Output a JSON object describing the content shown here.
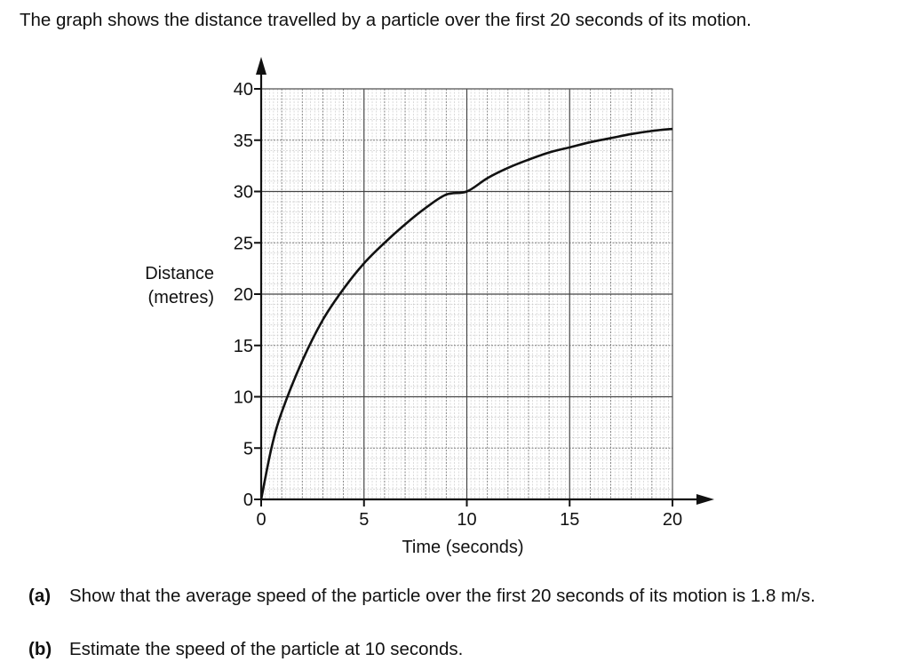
{
  "intro_text": "The graph shows the distance travelled by a particle over the first 20 seconds of its motion.",
  "chart_data": {
    "type": "line",
    "xlabel": "Time (seconds)",
    "ylabel_lines": [
      "Distance",
      "(metres)"
    ],
    "xlim": [
      0,
      20
    ],
    "ylim": [
      0,
      40
    ],
    "x_ticks": [
      0,
      5,
      10,
      15,
      20
    ],
    "y_ticks": [
      0,
      5,
      10,
      15,
      20,
      25,
      30,
      35,
      40
    ],
    "grid": true,
    "grid_minor_step": 1,
    "series": [
      {
        "x": [
          0,
          0.5,
          1,
          2,
          3,
          4,
          5,
          6,
          7,
          8,
          9,
          10,
          11,
          12,
          13,
          14,
          15,
          16,
          17,
          18,
          19,
          20
        ],
        "y": [
          0,
          5,
          8.5,
          13.5,
          17.5,
          20.5,
          23,
          25,
          26.8,
          28.4,
          29.7,
          30,
          31.3,
          32.3,
          33.1,
          33.8,
          34.3,
          34.8,
          35.2,
          35.6,
          35.9,
          36.1
        ]
      }
    ]
  },
  "questions": [
    {
      "label": "(a)",
      "text": "Show that the average speed of the particle over the first 20 seconds of its motion is 1.8 m/s."
    },
    {
      "label": "(b)",
      "text": "Estimate the speed of the particle at 10 seconds."
    }
  ]
}
